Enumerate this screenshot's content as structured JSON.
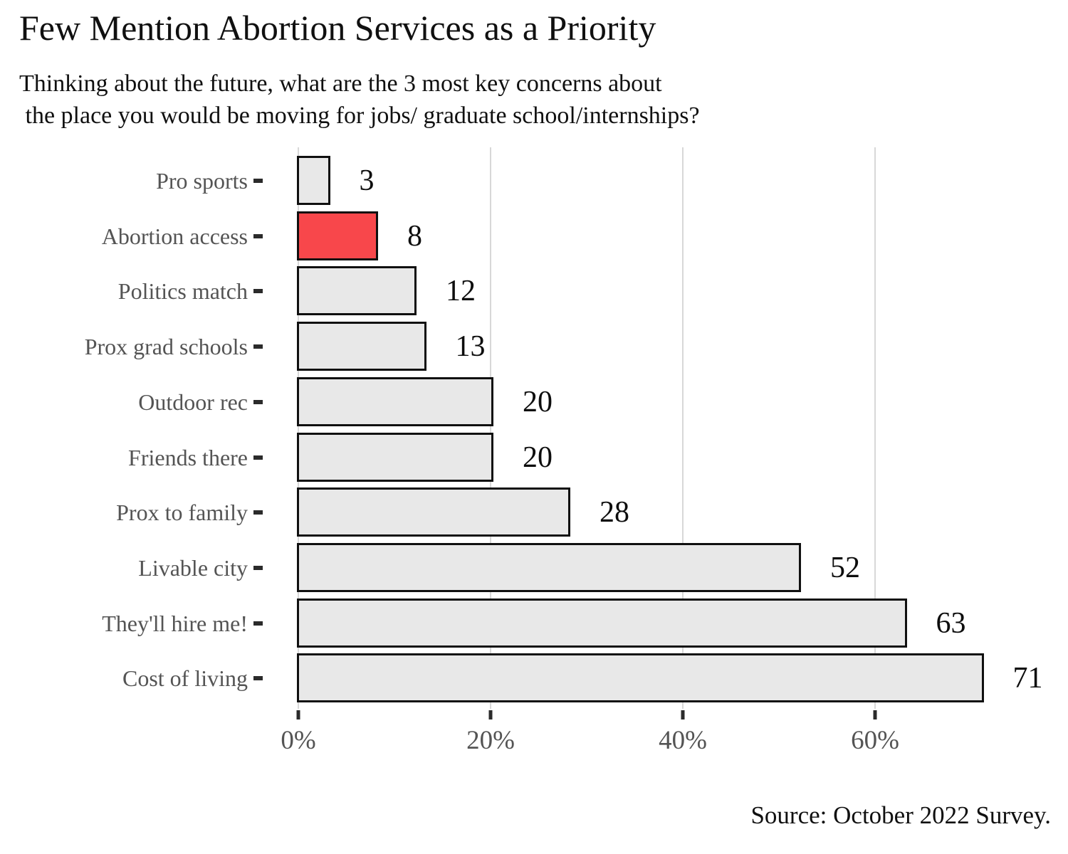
{
  "header": {
    "title": "Few Mention Abortion Services as a Priority",
    "subtitle_line1": "Thinking about the future, what are the 3 most key concerns about",
    "subtitle_line2": " the place you would be moving for jobs/ graduate school/internships?"
  },
  "footer": {
    "source": "Source: October 2022 Survey."
  },
  "chart_data": {
    "type": "bar",
    "orientation": "horizontal",
    "title": "Few Mention Abortion Services as a Priority",
    "subtitle": "Thinking about the future, what are the 3 most key concerns about the place you would be moving for jobs/ graduate school/internships?",
    "categories": [
      "Pro sports",
      "Abortion access",
      "Politics match",
      "Prox grad schools",
      "Outdoor rec",
      "Friends there",
      "Prox to family",
      "Livable city",
      "They'll hire me!",
      "Cost of living"
    ],
    "values": [
      3,
      8,
      12,
      13,
      20,
      20,
      28,
      52,
      63,
      71
    ],
    "data_labels": [
      "3",
      "8",
      "12",
      "13",
      "20",
      "20",
      "28",
      "52",
      "63",
      "71"
    ],
    "highlighted_category": "Abortion access",
    "highlight_index": 1,
    "xlabel": "",
    "ylabel": "",
    "x_ticks": [
      {
        "value": 0,
        "label": "0%"
      },
      {
        "value": 20,
        "label": "20%"
      },
      {
        "value": 40,
        "label": "40%"
      },
      {
        "value": 60,
        "label": "60%"
      }
    ],
    "xlim": [
      0,
      78
    ],
    "grid": "vertical-only",
    "legend": "none",
    "colors": {
      "bar_fill": "#e8e8e8",
      "bar_highlight_fill": "#f8474b",
      "bar_border": "#101010",
      "gridline": "#d8d8d8",
      "axis_text": "#545454",
      "tick_mark": "#2b2b2b",
      "value_text": "#0d0d0d"
    }
  }
}
